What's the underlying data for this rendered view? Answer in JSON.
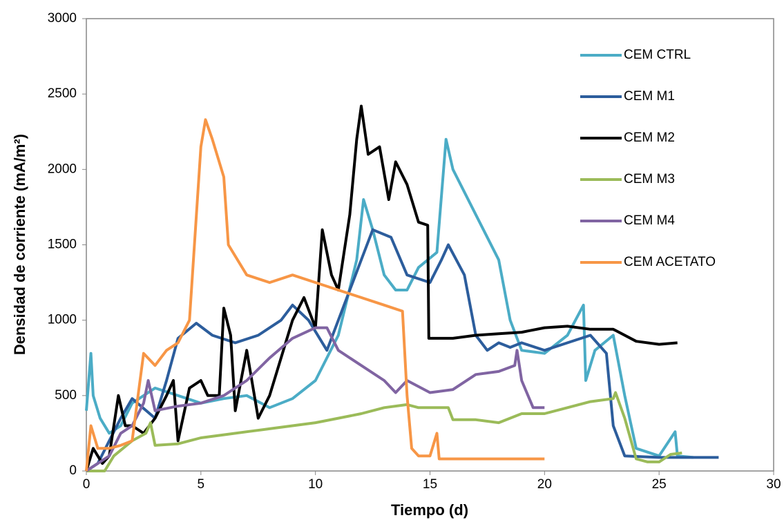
{
  "chart_data": {
    "type": "line",
    "xlabel": "Tiempo (d)",
    "ylabel": "Densidad de corriente (mA/m²)",
    "xlim": [
      0,
      30
    ],
    "xticks": [
      0,
      5,
      10,
      15,
      20,
      25,
      30
    ],
    "ylim": [
      0,
      3000
    ],
    "yticks": [
      0,
      500,
      1000,
      1500,
      2000,
      2500,
      3000
    ],
    "grid": false,
    "legend": "right",
    "series": [
      {
        "name": "CEM CTRL",
        "color": "#4bacc6",
        "x": [
          0,
          0.2,
          0.3,
          0.6,
          1,
          1.5,
          2,
          3,
          4,
          5,
          6,
          7,
          8,
          9,
          10,
          11,
          11.8,
          12.1,
          12.5,
          13,
          13.5,
          14,
          14.5,
          15.3,
          15.7,
          16,
          17,
          18,
          18.5,
          19,
          20,
          21,
          21.7,
          21.8,
          22.2,
          23,
          23.5,
          24,
          25,
          25.7,
          25.8,
          26.5
        ],
        "values": [
          400,
          780,
          500,
          350,
          250,
          300,
          450,
          550,
          500,
          450,
          480,
          500,
          420,
          480,
          600,
          900,
          1400,
          1800,
          1600,
          1300,
          1200,
          1200,
          1350,
          1450,
          2200,
          2000,
          1700,
          1400,
          1000,
          800,
          780,
          900,
          1100,
          600,
          800,
          900,
          500,
          150,
          100,
          260,
          100,
          90
        ]
      },
      {
        "name": "CEM M1",
        "color": "#2c5d9c",
        "x": [
          0,
          0.5,
          1,
          1.5,
          2,
          3,
          3.5,
          4,
          4.8,
          5.5,
          6.5,
          7.5,
          8.5,
          9,
          9.7,
          10.5,
          11,
          11.5,
          12,
          12.5,
          13.3,
          14,
          15,
          15.5,
          15.8,
          16.5,
          17,
          17.5,
          18,
          18.5,
          19,
          20,
          21,
          22,
          22.7,
          23,
          23.5,
          25,
          26,
          27.6
        ],
        "values": [
          0,
          50,
          200,
          350,
          480,
          350,
          600,
          880,
          980,
          900,
          850,
          900,
          1000,
          1100,
          1000,
          800,
          1000,
          1200,
          1400,
          1600,
          1550,
          1300,
          1250,
          1400,
          1500,
          1300,
          900,
          800,
          850,
          820,
          850,
          800,
          850,
          900,
          780,
          300,
          100,
          90,
          90,
          90
        ]
      },
      {
        "name": "CEM M2",
        "color": "#000000",
        "x": [
          0,
          0.3,
          0.7,
          1,
          1.4,
          1.7,
          2,
          2.5,
          3,
          3.5,
          3.8,
          4,
          4.5,
          5,
          5.3,
          5.8,
          6,
          6.3,
          6.5,
          7,
          7.5,
          8,
          8.5,
          9,
          9.5,
          10,
          10.3,
          10.7,
          11,
          11.5,
          11.8,
          12,
          12.3,
          12.8,
          13.2,
          13.5,
          14,
          14.5,
          14.9,
          14.95,
          16,
          17,
          18,
          19,
          20,
          21,
          22,
          23,
          24,
          25,
          25.8
        ],
        "values": [
          0,
          150,
          50,
          100,
          500,
          300,
          300,
          250,
          350,
          500,
          600,
          200,
          550,
          600,
          500,
          500,
          1080,
          900,
          400,
          800,
          350,
          500,
          750,
          1000,
          1150,
          950,
          1600,
          1300,
          1200,
          1700,
          2200,
          2420,
          2100,
          2150,
          1800,
          2050,
          1900,
          1650,
          1630,
          880,
          880,
          900,
          910,
          920,
          950,
          960,
          940,
          940,
          860,
          840,
          850
        ]
      },
      {
        "name": "CEM M3",
        "color": "#9bbb59",
        "x": [
          0,
          0.8,
          1.2,
          2,
          2.6,
          2.8,
          3,
          4,
          5,
          6,
          7,
          8,
          9,
          10,
          11,
          12,
          13,
          14,
          14.5,
          15,
          15.8,
          16,
          17,
          18,
          19,
          20,
          21,
          22,
          23,
          23.1,
          23.5,
          24,
          24.5,
          25,
          25.5,
          26
        ],
        "values": [
          0,
          0,
          100,
          200,
          250,
          320,
          170,
          180,
          220,
          240,
          260,
          280,
          300,
          320,
          350,
          380,
          420,
          440,
          420,
          420,
          420,
          340,
          340,
          320,
          380,
          380,
          420,
          460,
          480,
          520,
          350,
          80,
          60,
          60,
          110,
          120
        ]
      },
      {
        "name": "CEM M4",
        "color": "#8064a2",
        "x": [
          0,
          0.5,
          1,
          1.5,
          2,
          2.5,
          2.7,
          3,
          4,
          5,
          6,
          7,
          8,
          9,
          10,
          10.5,
          11,
          12,
          13,
          13.5,
          14,
          15,
          16,
          17,
          18,
          18.7,
          18.8,
          19,
          19.5,
          20
        ],
        "values": [
          0,
          50,
          100,
          250,
          300,
          450,
          600,
          400,
          430,
          450,
          500,
          600,
          750,
          880,
          950,
          950,
          800,
          700,
          600,
          520,
          600,
          520,
          540,
          640,
          660,
          700,
          800,
          600,
          420,
          420
        ]
      },
      {
        "name": "CEM ACETATO",
        "color": "#f79646",
        "x": [
          0,
          0.2,
          0.5,
          1,
          1.5,
          2,
          2.3,
          2.5,
          3,
          3.5,
          4,
          4.5,
          5,
          5.2,
          5.5,
          6,
          6.2,
          7,
          8,
          9,
          10,
          11,
          12,
          13,
          13.8,
          14,
          14.2,
          14.5,
          15,
          15.3,
          15.4,
          16,
          17,
          18,
          19,
          20
        ],
        "values": [
          0,
          300,
          150,
          150,
          170,
          200,
          550,
          780,
          700,
          800,
          850,
          1000,
          2150,
          2330,
          2200,
          1950,
          1500,
          1300,
          1250,
          1300,
          1250,
          1200,
          1150,
          1100,
          1060,
          500,
          150,
          100,
          100,
          250,
          80,
          80,
          80,
          80,
          80,
          80
        ]
      }
    ]
  }
}
